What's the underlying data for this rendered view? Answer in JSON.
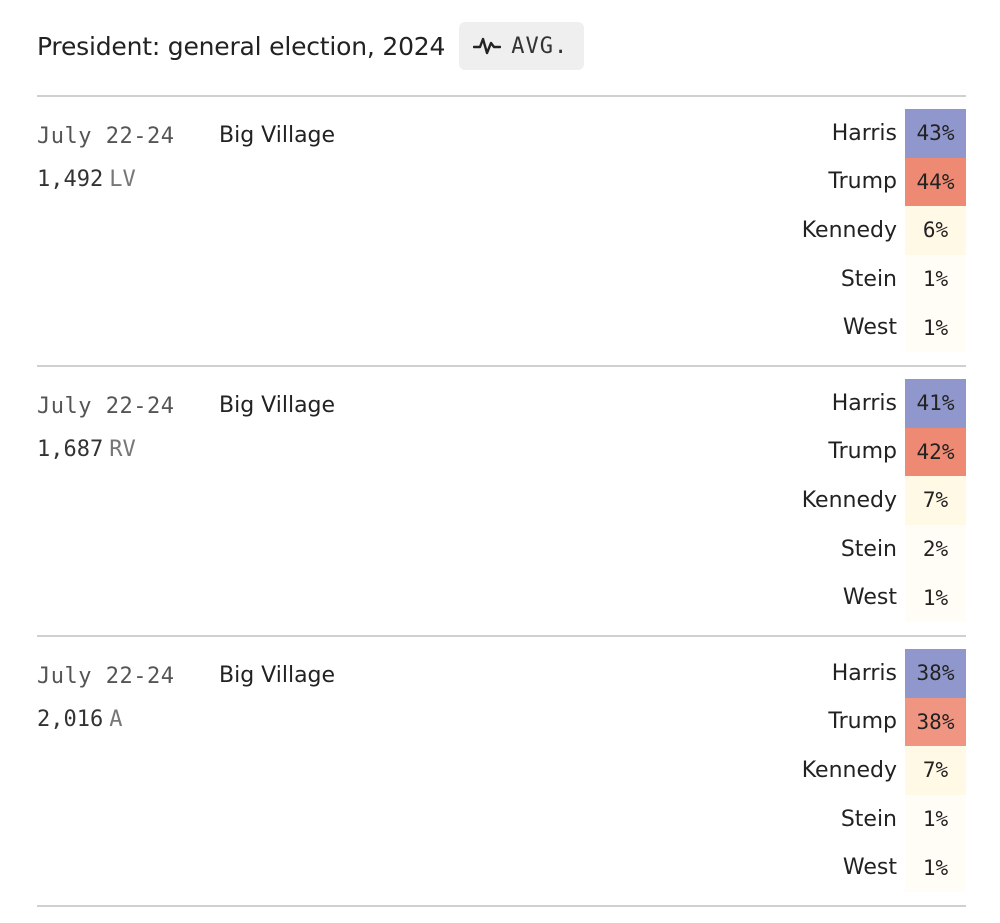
{
  "header": {
    "title": "President: general election, 2024",
    "avg_label": "AVG."
  },
  "colors": {
    "harris": "#8f97cc",
    "trump": "#ee8a74",
    "trump_alt": "#f09582",
    "kennedy": "#fff9e6",
    "minor": "#fffdf5"
  },
  "polls": [
    {
      "dates": "July 22-24",
      "sample": "1,492",
      "population": "LV",
      "pollster": "Big Village",
      "results": [
        {
          "candidate": "Harris",
          "pct": "43%"
        },
        {
          "candidate": "Trump",
          "pct": "44%"
        },
        {
          "candidate": "Kennedy",
          "pct": "6%"
        },
        {
          "candidate": "Stein",
          "pct": "1%"
        },
        {
          "candidate": "West",
          "pct": "1%"
        }
      ]
    },
    {
      "dates": "July 22-24",
      "sample": "1,687",
      "population": "RV",
      "pollster": "Big Village",
      "results": [
        {
          "candidate": "Harris",
          "pct": "41%"
        },
        {
          "candidate": "Trump",
          "pct": "42%"
        },
        {
          "candidate": "Kennedy",
          "pct": "7%"
        },
        {
          "candidate": "Stein",
          "pct": "2%"
        },
        {
          "candidate": "West",
          "pct": "1%"
        }
      ]
    },
    {
      "dates": "July 22-24",
      "sample": "2,016",
      "population": "A",
      "pollster": "Big Village",
      "results": [
        {
          "candidate": "Harris",
          "pct": "38%"
        },
        {
          "candidate": "Trump",
          "pct": "38%"
        },
        {
          "candidate": "Kennedy",
          "pct": "7%"
        },
        {
          "candidate": "Stein",
          "pct": "1%"
        },
        {
          "candidate": "West",
          "pct": "1%"
        }
      ]
    }
  ]
}
